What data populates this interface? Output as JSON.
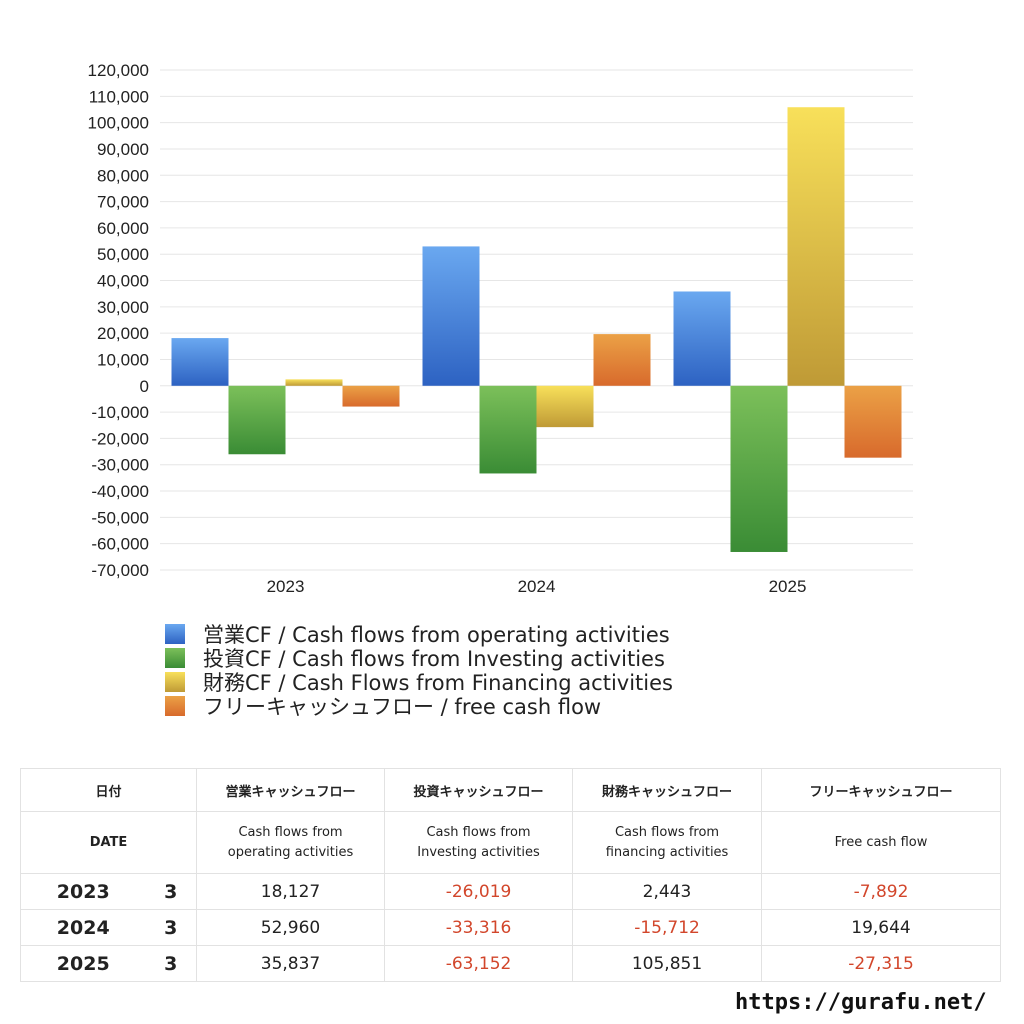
{
  "chart_data": {
    "type": "bar",
    "categories": [
      "2023",
      "2024",
      "2025"
    ],
    "series": [
      {
        "name": "営業CF / Cash flows from operating activities",
        "values": [
          18127,
          52960,
          35837
        ],
        "color_top": "#6aa8f0",
        "color_bottom": "#2d62c2"
      },
      {
        "name": "投資CF / Cash flows from Investing activities",
        "values": [
          -26019,
          -33316,
          -63152
        ],
        "color_top": "#7cc05a",
        "color_bottom": "#3a8c35"
      },
      {
        "name": "財務CF / Cash Flows from Financing activities",
        "values": [
          2443,
          -15712,
          105851
        ],
        "color_top": "#f8e05a",
        "color_bottom": "#bf9a36"
      },
      {
        "name": "フリーキャッシュフロー / free cash flow",
        "values": [
          -7892,
          19644,
          -27315
        ],
        "color_top": "#eba146",
        "color_bottom": "#d86a2c"
      }
    ],
    "ylim": [
      -70000,
      120000
    ],
    "ytick_step": 10000,
    "yticks": [
      "120,000",
      "110,000",
      "100,000",
      "90,000",
      "80,000",
      "70,000",
      "60,000",
      "50,000",
      "40,000",
      "30,000",
      "20,000",
      "10,000",
      "0",
      "-10,000",
      "-20,000",
      "-30,000",
      "-40,000",
      "-50,000",
      "-60,000",
      "-70,000"
    ],
    "grid": true,
    "legend_position": "bottom"
  },
  "table": {
    "headers_ja": [
      "日付",
      "営業キャッシュフロー",
      "投資キャッシュフロー",
      "財務キャッシュフロー",
      "フリーキャッシュフロー"
    ],
    "headers_en": [
      "DATE",
      "Cash flows from operating activities",
      "Cash flows from Investing activities",
      "Cash flows from financing activities",
      "Free cash flow"
    ],
    "headers_en_lines": [
      [
        "DATE"
      ],
      [
        "Cash flows from",
        "operating activities"
      ],
      [
        "Cash flows from",
        "Investing activities"
      ],
      [
        "Cash flows from",
        "financing activities"
      ],
      [
        "Free cash flow"
      ]
    ],
    "rows": [
      {
        "year": "2023",
        "month": "3",
        "values": [
          "18,127",
          "-26,019",
          "2,443",
          "-7,892"
        ]
      },
      {
        "year": "2024",
        "month": "3",
        "values": [
          "52,960",
          "-33,316",
          "-15,712",
          "19,644"
        ]
      },
      {
        "year": "2025",
        "month": "3",
        "values": [
          "35,837",
          "-63,152",
          "105,851",
          "-27,315"
        ]
      }
    ],
    "negative_color": "#d2462b"
  },
  "site_url": "https://gurafu.net/"
}
